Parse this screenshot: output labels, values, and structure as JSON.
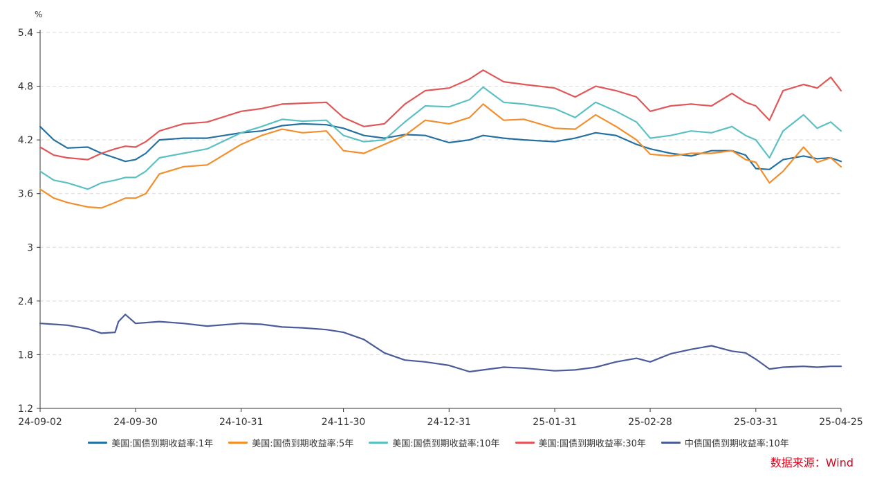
{
  "chart_data": {
    "type": "line",
    "unit": "%",
    "x_tick_labels": [
      "24-09-02",
      "24-09-30",
      "24-10-31",
      "24-11-30",
      "24-12-31",
      "25-01-31",
      "25-02-28",
      "25-03-31",
      "25-04-25"
    ],
    "x_range": [
      "2024-09-02",
      "2025-04-25"
    ],
    "y_ticks": [
      1.2,
      1.8,
      2.4,
      3,
      3.6,
      4.2,
      4.8,
      5.4
    ],
    "ylim": [
      1.2,
      5.4
    ],
    "grid": "horizontal dashed",
    "legend_position": "bottom",
    "source": "数据来源：Wind",
    "series": [
      {
        "name": "美国:国债到期收益率:1年",
        "color": "#2470a0",
        "points": [
          [
            "2024-09-02",
            4.35
          ],
          [
            "2024-09-06",
            4.2
          ],
          [
            "2024-09-10",
            4.11
          ],
          [
            "2024-09-16",
            4.12
          ],
          [
            "2024-09-20",
            4.05
          ],
          [
            "2024-09-24",
            4.0
          ],
          [
            "2024-09-27",
            3.96
          ],
          [
            "2024-09-30",
            3.98
          ],
          [
            "2024-10-03",
            4.05
          ],
          [
            "2024-10-07",
            4.2
          ],
          [
            "2024-10-14",
            4.22
          ],
          [
            "2024-10-21",
            4.22
          ],
          [
            "2024-10-31",
            4.28
          ],
          [
            "2024-11-06",
            4.3
          ],
          [
            "2024-11-12",
            4.36
          ],
          [
            "2024-11-18",
            4.38
          ],
          [
            "2024-11-25",
            4.37
          ],
          [
            "2024-11-30",
            4.33
          ],
          [
            "2024-12-06",
            4.25
          ],
          [
            "2024-12-12",
            4.22
          ],
          [
            "2024-12-18",
            4.26
          ],
          [
            "2024-12-24",
            4.25
          ],
          [
            "2024-12-31",
            4.17
          ],
          [
            "2025-01-06",
            4.2
          ],
          [
            "2025-01-10",
            4.25
          ],
          [
            "2025-01-16",
            4.22
          ],
          [
            "2025-01-22",
            4.2
          ],
          [
            "2025-01-31",
            4.18
          ],
          [
            "2025-02-06",
            4.22
          ],
          [
            "2025-02-12",
            4.28
          ],
          [
            "2025-02-18",
            4.25
          ],
          [
            "2025-02-24",
            4.15
          ],
          [
            "2025-02-28",
            4.1
          ],
          [
            "2025-03-06",
            4.05
          ],
          [
            "2025-03-12",
            4.02
          ],
          [
            "2025-03-18",
            4.08
          ],
          [
            "2025-03-24",
            4.08
          ],
          [
            "2025-03-28",
            4.03
          ],
          [
            "2025-03-31",
            3.88
          ],
          [
            "2025-04-04",
            3.87
          ],
          [
            "2025-04-08",
            3.98
          ],
          [
            "2025-04-14",
            4.02
          ],
          [
            "2025-04-18",
            3.99
          ],
          [
            "2025-04-22",
            4.0
          ],
          [
            "2025-04-25",
            3.96
          ]
        ]
      },
      {
        "name": "美国:国债到期收益率:5年",
        "color": "#f28e2b",
        "points": [
          [
            "2024-09-02",
            3.65
          ],
          [
            "2024-09-06",
            3.55
          ],
          [
            "2024-09-10",
            3.5
          ],
          [
            "2024-09-16",
            3.45
          ],
          [
            "2024-09-20",
            3.44
          ],
          [
            "2024-09-24",
            3.5
          ],
          [
            "2024-09-27",
            3.55
          ],
          [
            "2024-09-30",
            3.55
          ],
          [
            "2024-10-03",
            3.6
          ],
          [
            "2024-10-07",
            3.82
          ],
          [
            "2024-10-14",
            3.9
          ],
          [
            "2024-10-21",
            3.92
          ],
          [
            "2024-10-31",
            4.15
          ],
          [
            "2024-11-06",
            4.25
          ],
          [
            "2024-11-12",
            4.32
          ],
          [
            "2024-11-18",
            4.28
          ],
          [
            "2024-11-25",
            4.3
          ],
          [
            "2024-11-30",
            4.08
          ],
          [
            "2024-12-06",
            4.05
          ],
          [
            "2024-12-12",
            4.15
          ],
          [
            "2024-12-18",
            4.25
          ],
          [
            "2024-12-24",
            4.42
          ],
          [
            "2024-12-31",
            4.38
          ],
          [
            "2025-01-06",
            4.45
          ],
          [
            "2025-01-10",
            4.6
          ],
          [
            "2025-01-16",
            4.42
          ],
          [
            "2025-01-22",
            4.43
          ],
          [
            "2025-01-31",
            4.33
          ],
          [
            "2025-02-06",
            4.32
          ],
          [
            "2025-02-12",
            4.48
          ],
          [
            "2025-02-18",
            4.35
          ],
          [
            "2025-02-24",
            4.2
          ],
          [
            "2025-02-28",
            4.04
          ],
          [
            "2025-03-06",
            4.02
          ],
          [
            "2025-03-12",
            4.05
          ],
          [
            "2025-03-18",
            4.05
          ],
          [
            "2025-03-24",
            4.08
          ],
          [
            "2025-03-28",
            3.98
          ],
          [
            "2025-03-31",
            3.95
          ],
          [
            "2025-04-04",
            3.72
          ],
          [
            "2025-04-08",
            3.85
          ],
          [
            "2025-04-14",
            4.12
          ],
          [
            "2025-04-18",
            3.95
          ],
          [
            "2025-04-22",
            4.0
          ],
          [
            "2025-04-25",
            3.9
          ]
        ]
      },
      {
        "name": "美国:国债到期收益率:10年",
        "color": "#5bc0c4",
        "points": [
          [
            "2024-09-02",
            3.85
          ],
          [
            "2024-09-06",
            3.75
          ],
          [
            "2024-09-10",
            3.72
          ],
          [
            "2024-09-16",
            3.65
          ],
          [
            "2024-09-20",
            3.72
          ],
          [
            "2024-09-24",
            3.75
          ],
          [
            "2024-09-27",
            3.78
          ],
          [
            "2024-09-30",
            3.78
          ],
          [
            "2024-10-03",
            3.85
          ],
          [
            "2024-10-07",
            4.0
          ],
          [
            "2024-10-14",
            4.05
          ],
          [
            "2024-10-21",
            4.1
          ],
          [
            "2024-10-31",
            4.28
          ],
          [
            "2024-11-06",
            4.35
          ],
          [
            "2024-11-12",
            4.43
          ],
          [
            "2024-11-18",
            4.41
          ],
          [
            "2024-11-25",
            4.42
          ],
          [
            "2024-11-30",
            4.25
          ],
          [
            "2024-12-06",
            4.18
          ],
          [
            "2024-12-12",
            4.2
          ],
          [
            "2024-12-18",
            4.4
          ],
          [
            "2024-12-24",
            4.58
          ],
          [
            "2024-12-31",
            4.57
          ],
          [
            "2025-01-06",
            4.65
          ],
          [
            "2025-01-10",
            4.79
          ],
          [
            "2025-01-16",
            4.62
          ],
          [
            "2025-01-22",
            4.6
          ],
          [
            "2025-01-31",
            4.55
          ],
          [
            "2025-02-06",
            4.45
          ],
          [
            "2025-02-12",
            4.62
          ],
          [
            "2025-02-18",
            4.52
          ],
          [
            "2025-02-24",
            4.4
          ],
          [
            "2025-02-28",
            4.22
          ],
          [
            "2025-03-06",
            4.25
          ],
          [
            "2025-03-12",
            4.3
          ],
          [
            "2025-03-18",
            4.28
          ],
          [
            "2025-03-24",
            4.35
          ],
          [
            "2025-03-28",
            4.25
          ],
          [
            "2025-03-31",
            4.2
          ],
          [
            "2025-04-04",
            4.0
          ],
          [
            "2025-04-08",
            4.3
          ],
          [
            "2025-04-14",
            4.48
          ],
          [
            "2025-04-18",
            4.33
          ],
          [
            "2025-04-22",
            4.4
          ],
          [
            "2025-04-25",
            4.3
          ]
        ]
      },
      {
        "name": "美国:国债到期收益率:30年",
        "color": "#e15759",
        "points": [
          [
            "2024-09-02",
            4.12
          ],
          [
            "2024-09-06",
            4.03
          ],
          [
            "2024-09-10",
            4.0
          ],
          [
            "2024-09-16",
            3.98
          ],
          [
            "2024-09-20",
            4.05
          ],
          [
            "2024-09-24",
            4.1
          ],
          [
            "2024-09-27",
            4.13
          ],
          [
            "2024-09-30",
            4.12
          ],
          [
            "2024-10-03",
            4.18
          ],
          [
            "2024-10-07",
            4.3
          ],
          [
            "2024-10-14",
            4.38
          ],
          [
            "2024-10-21",
            4.4
          ],
          [
            "2024-10-31",
            4.52
          ],
          [
            "2024-11-06",
            4.55
          ],
          [
            "2024-11-12",
            4.6
          ],
          [
            "2024-11-18",
            4.61
          ],
          [
            "2024-11-25",
            4.62
          ],
          [
            "2024-11-30",
            4.45
          ],
          [
            "2024-12-06",
            4.35
          ],
          [
            "2024-12-12",
            4.38
          ],
          [
            "2024-12-18",
            4.6
          ],
          [
            "2024-12-24",
            4.75
          ],
          [
            "2024-12-31",
            4.78
          ],
          [
            "2025-01-06",
            4.88
          ],
          [
            "2025-01-10",
            4.98
          ],
          [
            "2025-01-16",
            4.85
          ],
          [
            "2025-01-22",
            4.82
          ],
          [
            "2025-01-31",
            4.78
          ],
          [
            "2025-02-06",
            4.68
          ],
          [
            "2025-02-12",
            4.8
          ],
          [
            "2025-02-18",
            4.75
          ],
          [
            "2025-02-24",
            4.68
          ],
          [
            "2025-02-28",
            4.52
          ],
          [
            "2025-03-06",
            4.58
          ],
          [
            "2025-03-12",
            4.6
          ],
          [
            "2025-03-18",
            4.58
          ],
          [
            "2025-03-24",
            4.72
          ],
          [
            "2025-03-28",
            4.62
          ],
          [
            "2025-03-31",
            4.58
          ],
          [
            "2025-04-04",
            4.42
          ],
          [
            "2025-04-08",
            4.75
          ],
          [
            "2025-04-14",
            4.82
          ],
          [
            "2025-04-18",
            4.78
          ],
          [
            "2025-04-22",
            4.9
          ],
          [
            "2025-04-25",
            4.75
          ]
        ]
      },
      {
        "name": "中债国债到期收益率:10年",
        "color": "#4a5b9a",
        "points": [
          [
            "2024-09-02",
            2.15
          ],
          [
            "2024-09-06",
            2.14
          ],
          [
            "2024-09-10",
            2.13
          ],
          [
            "2024-09-16",
            2.09
          ],
          [
            "2024-09-20",
            2.04
          ],
          [
            "2024-09-24",
            2.05
          ],
          [
            "2024-09-25",
            2.17
          ],
          [
            "2024-09-27",
            2.25
          ],
          [
            "2024-09-30",
            2.15
          ],
          [
            "2024-10-07",
            2.17
          ],
          [
            "2024-10-14",
            2.15
          ],
          [
            "2024-10-21",
            2.12
          ],
          [
            "2024-10-31",
            2.15
          ],
          [
            "2024-11-06",
            2.14
          ],
          [
            "2024-11-12",
            2.11
          ],
          [
            "2024-11-18",
            2.1
          ],
          [
            "2024-11-25",
            2.08
          ],
          [
            "2024-11-30",
            2.05
          ],
          [
            "2024-12-06",
            1.97
          ],
          [
            "2024-12-12",
            1.82
          ],
          [
            "2024-12-18",
            1.74
          ],
          [
            "2024-12-24",
            1.72
          ],
          [
            "2024-12-31",
            1.68
          ],
          [
            "2025-01-06",
            1.61
          ],
          [
            "2025-01-10",
            1.63
          ],
          [
            "2025-01-16",
            1.66
          ],
          [
            "2025-01-22",
            1.65
          ],
          [
            "2025-01-31",
            1.62
          ],
          [
            "2025-02-06",
            1.63
          ],
          [
            "2025-02-12",
            1.66
          ],
          [
            "2025-02-18",
            1.72
          ],
          [
            "2025-02-24",
            1.76
          ],
          [
            "2025-02-28",
            1.72
          ],
          [
            "2025-03-06",
            1.81
          ],
          [
            "2025-03-12",
            1.86
          ],
          [
            "2025-03-18",
            1.9
          ],
          [
            "2025-03-24",
            1.84
          ],
          [
            "2025-03-28",
            1.82
          ],
          [
            "2025-03-31",
            1.75
          ],
          [
            "2025-04-04",
            1.64
          ],
          [
            "2025-04-08",
            1.66
          ],
          [
            "2025-04-14",
            1.67
          ],
          [
            "2025-04-18",
            1.66
          ],
          [
            "2025-04-22",
            1.67
          ],
          [
            "2025-04-25",
            1.67
          ]
        ]
      }
    ]
  }
}
